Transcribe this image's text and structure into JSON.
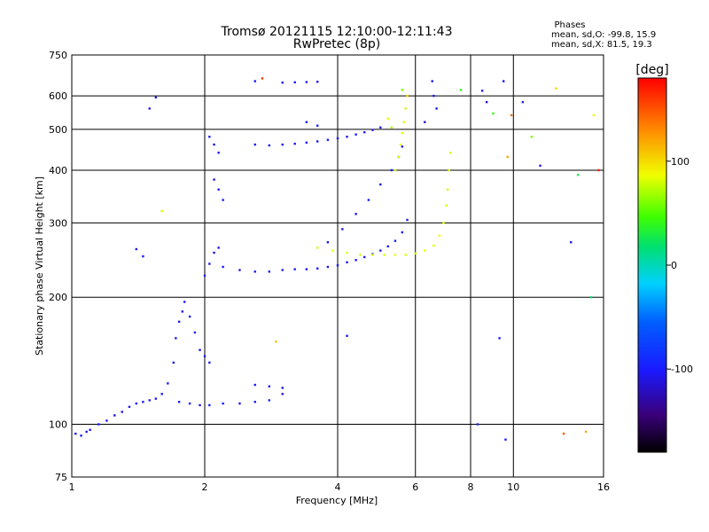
{
  "chart_data": {
    "type": "scatter",
    "title": "Tromsø 20121115 12:10:00-12:11:43",
    "subtitle": "RwPretec (8p)",
    "xlabel": "Frequency [MHz]",
    "ylabel": "Stationary phase Virtual Height [km]",
    "x_scale": "log",
    "y_scale": "log",
    "xlim": [
      1,
      16
    ],
    "ylim": [
      75,
      750
    ],
    "x_ticks": [
      1,
      2,
      4,
      6,
      8,
      10,
      16
    ],
    "x_tick_labels": [
      "1",
      "2",
      "4",
      "6",
      "8",
      "10",
      "16"
    ],
    "y_ticks": [
      75,
      100,
      200,
      300,
      400,
      500,
      600,
      750
    ],
    "y_tick_labels": [
      "75",
      "100",
      "200",
      "300",
      "400",
      "500",
      "600",
      "750"
    ],
    "grid": true,
    "stats": {
      "heading": "Phases",
      "o_line": "mean, sd,O: -99.8, 15.9",
      "x_line": "mean, sd,X:  81.5, 19.3"
    },
    "colorbar": {
      "label": "[deg]",
      "range": [
        -180,
        180
      ],
      "tick_values": [
        100,
        0,
        -100
      ],
      "tick_labels": [
        "100",
        "0",
        "-100"
      ]
    },
    "series": [
      {
        "mode": "O",
        "points": [
          [
            1.02,
            95,
            -105
          ],
          [
            1.05,
            94,
            -100
          ],
          [
            1.08,
            96,
            -108
          ],
          [
            1.1,
            97,
            -102
          ],
          [
            1.15,
            100,
            -98
          ],
          [
            1.2,
            102,
            -104
          ],
          [
            1.25,
            105,
            -100
          ],
          [
            1.3,
            107,
            -110
          ],
          [
            1.35,
            110,
            -100
          ],
          [
            1.4,
            112,
            -96
          ],
          [
            1.45,
            113,
            -104
          ],
          [
            1.5,
            114,
            -100
          ],
          [
            1.55,
            115,
            -106
          ],
          [
            1.6,
            118,
            -102
          ],
          [
            1.65,
            125,
            -100
          ],
          [
            1.7,
            140,
            -108
          ],
          [
            1.72,
            160,
            -104
          ],
          [
            1.75,
            175,
            -100
          ],
          [
            1.78,
            185,
            -110
          ],
          [
            1.8,
            195,
            -104
          ],
          [
            1.85,
            180,
            -100
          ],
          [
            1.9,
            165,
            -96
          ],
          [
            1.95,
            150,
            -104
          ],
          [
            2.0,
            145,
            -100
          ],
          [
            2.05,
            140,
            -104
          ],
          [
            1.75,
            113,
            -100
          ],
          [
            1.85,
            112,
            -96
          ],
          [
            1.95,
            111,
            -102
          ],
          [
            2.05,
            111,
            -100
          ],
          [
            2.2,
            112,
            -98
          ],
          [
            2.4,
            112,
            -104
          ],
          [
            2.6,
            113,
            -100
          ],
          [
            2.8,
            114,
            -96
          ],
          [
            3.0,
            118,
            -106
          ],
          [
            2.6,
            124,
            -100
          ],
          [
            2.8,
            123,
            -98
          ],
          [
            3.0,
            122,
            -104
          ],
          [
            2.0,
            225,
            -100
          ],
          [
            2.05,
            240,
            -104
          ],
          [
            2.1,
            255,
            -110
          ],
          [
            2.15,
            262,
            -102
          ],
          [
            2.2,
            236,
            -100
          ],
          [
            2.4,
            232,
            -106
          ],
          [
            2.6,
            230,
            -100
          ],
          [
            2.8,
            230,
            -104
          ],
          [
            3.0,
            232,
            -100
          ],
          [
            3.2,
            233,
            -96
          ],
          [
            3.4,
            233,
            -102
          ],
          [
            3.6,
            234,
            -100
          ],
          [
            3.8,
            236,
            -104
          ],
          [
            4.0,
            238,
            -100
          ],
          [
            4.2,
            242,
            -98
          ],
          [
            4.4,
            245,
            -102
          ],
          [
            4.6,
            249,
            -100
          ],
          [
            4.8,
            253,
            -104
          ],
          [
            5.0,
            258,
            -100
          ],
          [
            5.2,
            264,
            -106
          ],
          [
            5.4,
            272,
            -102
          ],
          [
            5.6,
            285,
            -100
          ],
          [
            5.75,
            305,
            -104
          ],
          [
            2.05,
            480,
            -100
          ],
          [
            2.1,
            460,
            -104
          ],
          [
            2.15,
            440,
            -100
          ],
          [
            2.1,
            380,
            -110
          ],
          [
            2.15,
            360,
            -104
          ],
          [
            2.2,
            340,
            -100
          ],
          [
            2.6,
            460,
            -100
          ],
          [
            2.8,
            458,
            -104
          ],
          [
            3.0,
            460,
            -100
          ],
          [
            3.2,
            462,
            -102
          ],
          [
            3.4,
            465,
            -100
          ],
          [
            3.6,
            468,
            -104
          ],
          [
            3.8,
            472,
            -100
          ],
          [
            4.0,
            476,
            -98
          ],
          [
            4.2,
            480,
            -102
          ],
          [
            4.4,
            486,
            -100
          ],
          [
            4.6,
            492,
            -104
          ],
          [
            4.8,
            498,
            -100
          ],
          [
            5.0,
            505,
            -100
          ],
          [
            3.4,
            520,
            -104
          ],
          [
            3.6,
            510,
            -100
          ],
          [
            3.0,
            645,
            -100
          ],
          [
            3.2,
            646,
            -104
          ],
          [
            3.4,
            647,
            -100
          ],
          [
            3.6,
            648,
            -102
          ],
          [
            3.8,
            270,
            -104
          ],
          [
            4.1,
            290,
            -100
          ],
          [
            4.4,
            315,
            -104
          ],
          [
            4.7,
            340,
            -100
          ],
          [
            5.0,
            370,
            -102
          ],
          [
            5.3,
            400,
            -100
          ],
          [
            5.5,
            430,
            -104
          ],
          [
            5.6,
            455,
            -100
          ]
        ]
      },
      {
        "mode": "X",
        "points": [
          [
            3.6,
            262,
            80
          ],
          [
            3.9,
            258,
            85
          ],
          [
            4.2,
            255,
            82
          ],
          [
            4.5,
            252,
            78
          ],
          [
            4.8,
            252,
            84
          ],
          [
            5.1,
            252,
            80
          ],
          [
            5.4,
            252,
            86
          ],
          [
            5.7,
            252,
            82
          ],
          [
            6.0,
            254,
            78
          ],
          [
            6.3,
            258,
            84
          ],
          [
            6.6,
            265,
            80
          ],
          [
            6.8,
            280,
            85
          ],
          [
            6.95,
            300,
            82
          ],
          [
            7.05,
            330,
            80
          ],
          [
            7.1,
            360,
            78
          ],
          [
            7.15,
            400,
            84
          ],
          [
            7.2,
            440,
            80
          ],
          [
            5.4,
            400,
            82
          ],
          [
            5.5,
            430,
            80
          ],
          [
            5.55,
            460,
            84
          ],
          [
            5.6,
            490,
            80
          ],
          [
            5.65,
            520,
            82
          ],
          [
            5.7,
            560,
            78
          ],
          [
            5.75,
            600,
            100
          ],
          [
            5.6,
            620,
            60
          ],
          [
            5.2,
            530,
            90
          ],
          [
            5.3,
            505,
            70
          ]
        ]
      },
      {
        "mode": "scatter",
        "points": [
          [
            1.5,
            560,
            -100
          ],
          [
            1.55,
            595,
            -110
          ],
          [
            1.4,
            260,
            -104
          ],
          [
            1.45,
            250,
            -100
          ],
          [
            1.6,
            320,
            80
          ],
          [
            2.7,
            660,
            160
          ],
          [
            2.6,
            650,
            -100
          ],
          [
            2.9,
            157,
            110
          ],
          [
            4.2,
            162,
            -100
          ],
          [
            6.3,
            520,
            -120
          ],
          [
            6.55,
            650,
            -100
          ],
          [
            6.6,
            600,
            -104
          ],
          [
            6.7,
            560,
            -100
          ],
          [
            7.6,
            620,
            40
          ],
          [
            8.3,
            100,
            -100
          ],
          [
            8.5,
            617,
            -100
          ],
          [
            8.7,
            580,
            -120
          ],
          [
            9.0,
            545,
            40
          ],
          [
            9.3,
            160,
            -100
          ],
          [
            9.5,
            650,
            -110
          ],
          [
            9.6,
            92,
            -100
          ],
          [
            9.7,
            430,
            120
          ],
          [
            9.9,
            540,
            140
          ],
          [
            10.5,
            580,
            -100
          ],
          [
            11.0,
            480,
            60
          ],
          [
            11.5,
            410,
            -110
          ],
          [
            12.5,
            625,
            100
          ],
          [
            13.0,
            95,
            150
          ],
          [
            13.5,
            270,
            -100
          ],
          [
            14.0,
            390,
            30
          ],
          [
            14.6,
            96,
            120
          ],
          [
            15.0,
            200,
            20
          ],
          [
            15.2,
            540,
            90
          ],
          [
            15.6,
            400,
            170
          ]
        ]
      }
    ]
  }
}
